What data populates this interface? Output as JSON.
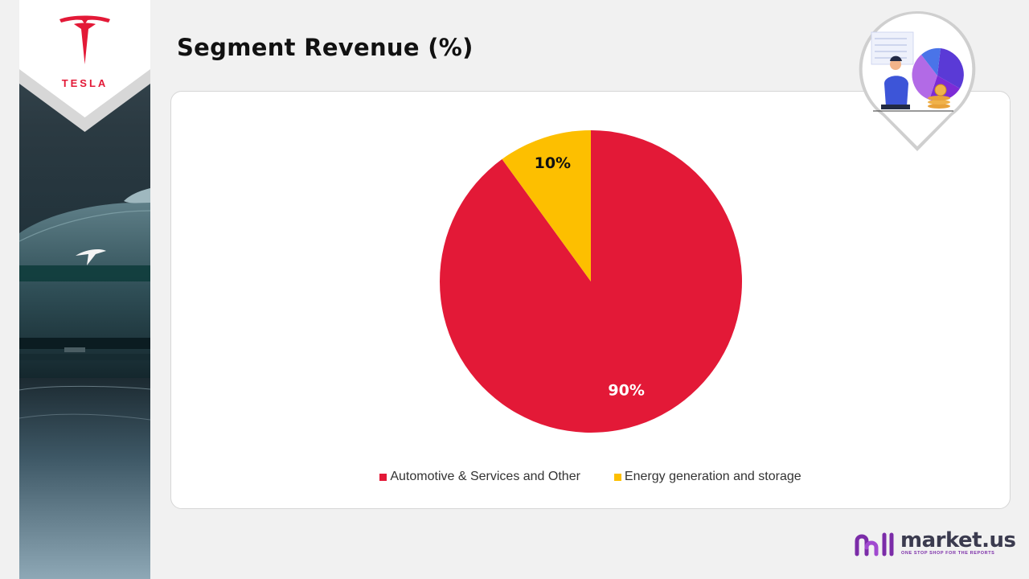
{
  "header": {
    "title": "Segment Revenue (%)",
    "logo_text": "TESLA"
  },
  "chart_data": {
    "type": "pie",
    "title": "Segment Revenue (%)",
    "categories": [
      "Automotive & Services and Other",
      "Energy generation and storage"
    ],
    "values": [
      90,
      10
    ],
    "labels": [
      "90%",
      "10%"
    ],
    "colors": [
      "#e31937",
      "#fdbf00"
    ],
    "label_colors": [
      "#ffffff",
      "#111111"
    ],
    "legend_position": "bottom"
  },
  "brand": {
    "name": "market.us",
    "tagline": "ONE STOP SHOP FOR THE REPORTS",
    "accent": "#7b2ca8"
  },
  "icons": {
    "logo": "tesla-logo-icon",
    "badge": "analyst-illustration-icon",
    "brand": "marketus-logo-icon"
  }
}
